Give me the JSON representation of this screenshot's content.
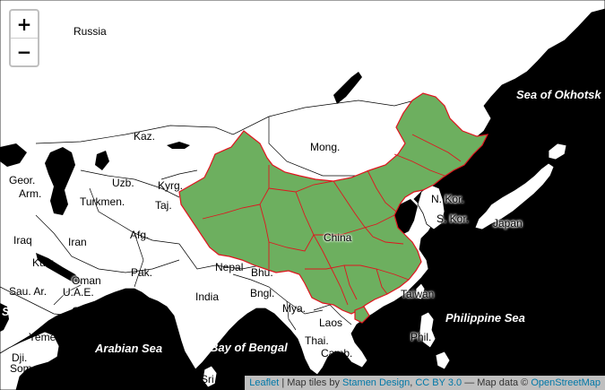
{
  "map": {
    "controls": {
      "zoom_in": "+",
      "zoom_out": "−"
    },
    "highlight": {
      "country": "China",
      "fill": "#6daf5f",
      "stroke": "#e0141e"
    },
    "colors": {
      "land": "#ffffff",
      "water": "#000000",
      "borders": "#000000"
    },
    "labels": {
      "russia": "Russia",
      "kaz": "Kaz.",
      "mong": "Mong.",
      "china": "China",
      "geor": "Geor.",
      "arm": "Arm.",
      "uzb": "Uzb.",
      "turkmen": "Turkmen.",
      "kyrg": "Kyrg.",
      "taj": "Taj.",
      "iraq": "Iraq",
      "iran": "Iran",
      "afg": "Afg.",
      "kuw": "Kuw.",
      "pak": "Pak.",
      "nepal": "Nepal",
      "bhu": "Bhu.",
      "sau_ar": "Sau. Ar.",
      "oman1": "Oman",
      "uae": "U.A.E.",
      "oman2": "Oman",
      "india": "India",
      "bngl": "Bngl.",
      "mya": "Mya.",
      "laos": "Laos",
      "thai": "Thai.",
      "camb": "Camb.",
      "yemen": "Yemen",
      "dji": "Dji.",
      "somaliland": "Somaliland",
      "sri_l": "Sri L.",
      "phil": "Phil.",
      "taiwan": "Taiwan",
      "n_kor": "N. Kor.",
      "s_kor": "S. Kor.",
      "japan": "Japan",
      "sea_okhotsk": "Sea of Okhotsk",
      "philippine_sea": "Philippine Sea",
      "arabian_sea": "Arabian Sea",
      "bay_bengal": "Bay of Bengal",
      "sea_left": "Sea"
    },
    "attribution": {
      "leaflet": "Leaflet",
      "sep1": " | Map tiles by ",
      "stamen": "Stamen Design",
      "sep2": ", ",
      "ccby": "CC BY 3.0",
      "sep3": " — Map data © ",
      "osm": "OpenStreetMap"
    }
  }
}
